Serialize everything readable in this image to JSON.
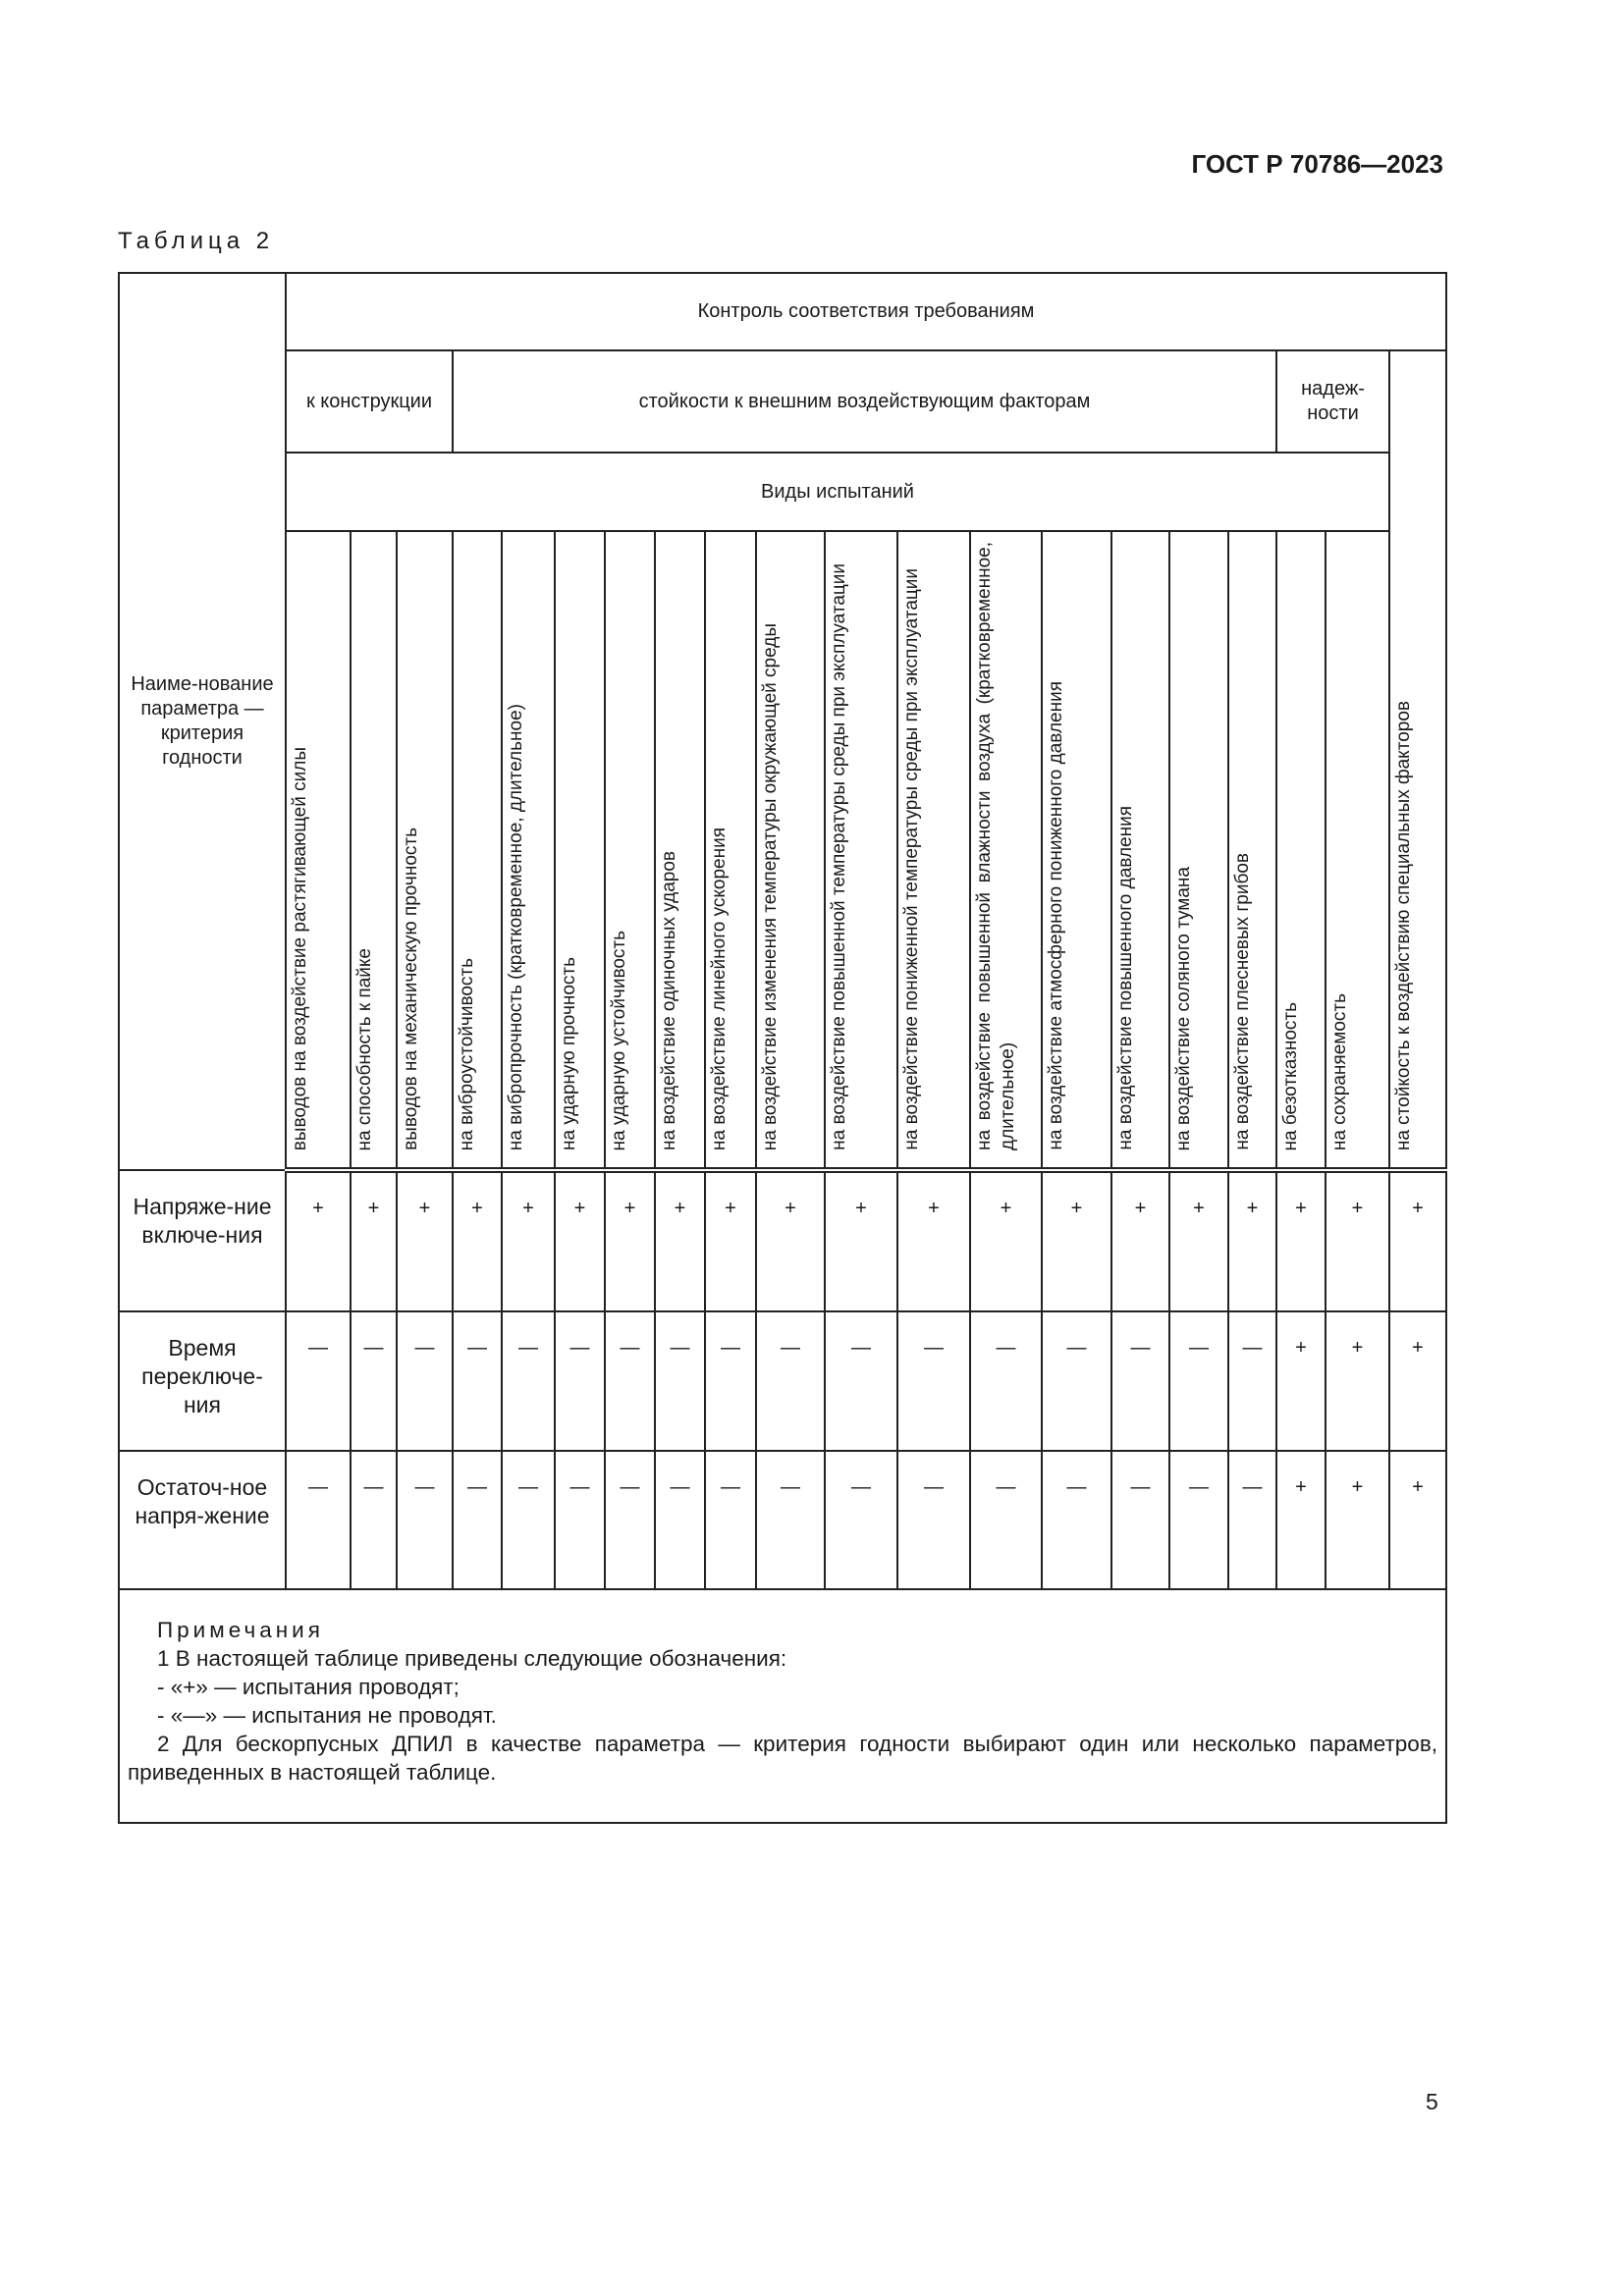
{
  "header": {
    "doc_code": "ГОСТ Р 70786—2023"
  },
  "caption": "Таблица 2",
  "table": {
    "param_header": "Наиме-нование параметра — критерия годности",
    "control_header": "Контроль соответствия требованиям",
    "groups": [
      "к конструкции",
      "стойкости к внешним воздействующим факторам",
      "надеж-ности"
    ],
    "test_kinds": "Виды испытаний",
    "columns": [
      "выводов на воздействие растягивающей силы",
      "на способность к пайке",
      "выводов на механическую прочность",
      "на виброустойчивость",
      "на вибропрочность (кратковременное, длительное)",
      "на ударную прочность",
      "на ударную устойчивость",
      "на воздействие одиночных ударов",
      "на воздействие линейного ускорения",
      "на воздействие изменения температуры окружающей среды",
      "на воздействие повышенной температуры среды при эксплуатации",
      "на воздействие пониженной температуры среды при эксплуатации",
      "на воздействие повышенной влажности воздуха (кратковременное, длительное)",
      "на воздействие атмосферного пониженного давления",
      "на воздействие повышенного давления",
      "на воздействие соляного тумана",
      "на воздействие плесневых грибов",
      "на безотказность",
      "на сохраняемость",
      "на стойкость к воздействию специальных факторов"
    ],
    "rows": [
      {
        "name": "Напряже-ние включе-ния",
        "marks": [
          "+",
          "+",
          "+",
          "+",
          "+",
          "+",
          "+",
          "+",
          "+",
          "+",
          "+",
          "+",
          "+",
          "+",
          "+",
          "+",
          "+",
          "+",
          "+",
          "+"
        ]
      },
      {
        "name": "Время переключе-ния",
        "marks": [
          "—",
          "—",
          "—",
          "—",
          "—",
          "—",
          "—",
          "—",
          "—",
          "—",
          "—",
          "—",
          "—",
          "—",
          "—",
          "—",
          "—",
          "+",
          "+",
          "+"
        ]
      },
      {
        "name": "Остаточ-ное напря-жение",
        "marks": [
          "—",
          "—",
          "—",
          "—",
          "—",
          "—",
          "—",
          "—",
          "—",
          "—",
          "—",
          "—",
          "—",
          "—",
          "—",
          "—",
          "—",
          "+",
          "+",
          "+"
        ]
      }
    ]
  },
  "notes": {
    "title": "Примечания",
    "lines": [
      "1 В настоящей таблице приведены следующие обозначения:",
      "- «+» — испытания проводят;",
      "- «—» — испытания не проводят."
    ],
    "para": "2 Для бескорпусных ДПИЛ в качестве параметра — критерия годности выбирают один или несколько параметров, приведенных в настоящей таблице."
  },
  "page_number": "5"
}
